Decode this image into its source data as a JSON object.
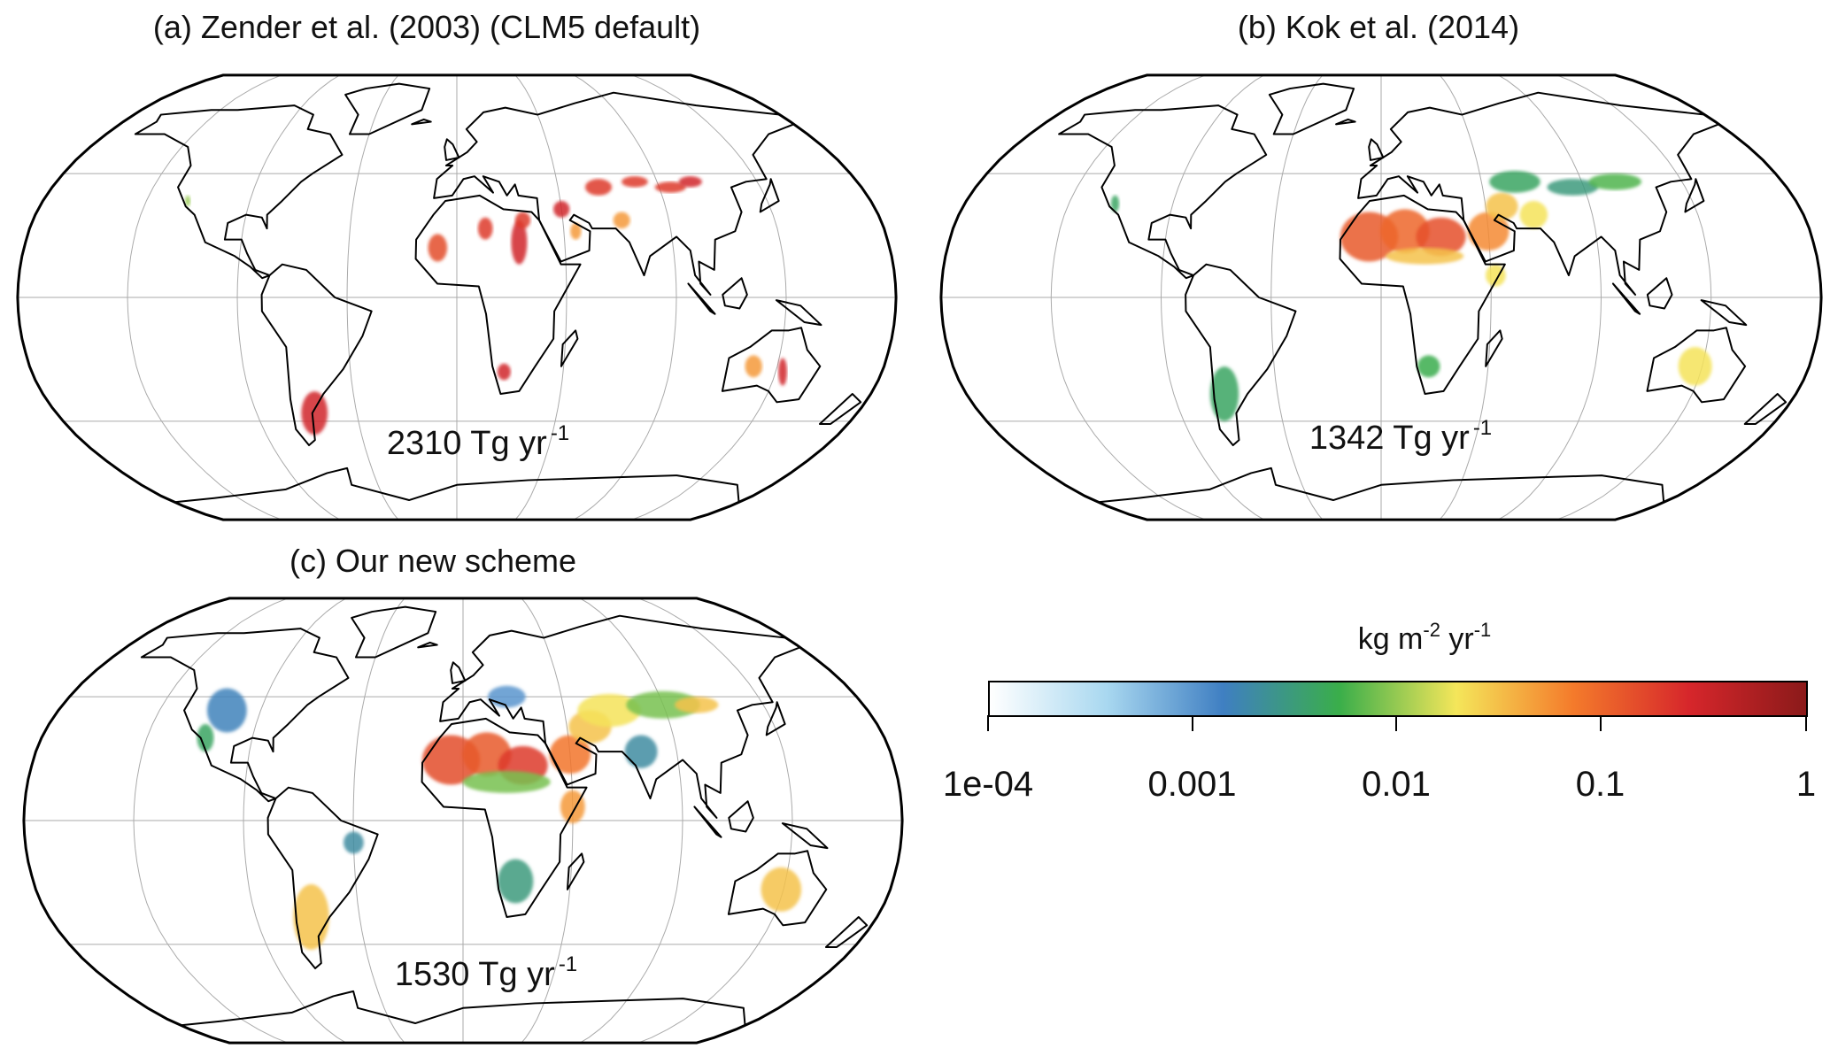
{
  "panels": [
    {
      "id": "a",
      "title": "(a) Zender et al. (2003) (CLM5 default)",
      "total": {
        "value": "2310 Tg yr",
        "exp": "-1"
      },
      "hotspots": [
        [
          -64,
          -42,
          3,
          8,
          0.3
        ],
        [
          -117,
          35,
          2,
          2,
          0.01
        ],
        [
          -8,
          18,
          4,
          5,
          0.15
        ],
        [
          12,
          25,
          3,
          4,
          0.2
        ],
        [
          26,
          20,
          3,
          8,
          0.3
        ],
        [
          28,
          28,
          3,
          3,
          0.2
        ],
        [
          45,
          32,
          3,
          3,
          0.3
        ],
        [
          50,
          24,
          2,
          3,
          0.05
        ],
        [
          63,
          40,
          5,
          3,
          0.2
        ],
        [
          80,
          42,
          5,
          2,
          0.2
        ],
        [
          95,
          40,
          6,
          2,
          0.2
        ],
        [
          105,
          42,
          4,
          2,
          0.3
        ],
        [
          70,
          28,
          3,
          3,
          0.05
        ],
        [
          20,
          -27,
          3,
          3,
          0.3
        ],
        [
          125,
          -25,
          5,
          4,
          0.05
        ],
        [
          138,
          -27,
          4,
          5,
          0.3
        ]
      ]
    },
    {
      "id": "b",
      "title": "(b) Kok et al. (2014)",
      "total": {
        "value": "1342 Tg yr",
        "exp": "-1"
      },
      "hotspots": [
        [
          -5,
          22,
          12,
          9,
          0.12
        ],
        [
          10,
          24,
          10,
          8,
          0.1
        ],
        [
          25,
          22,
          10,
          7,
          0.14
        ],
        [
          18,
          15,
          16,
          3,
          0.03
        ],
        [
          45,
          24,
          8,
          7,
          0.06
        ],
        [
          52,
          33,
          6,
          5,
          0.03
        ],
        [
          65,
          30,
          5,
          5,
          0.02
        ],
        [
          60,
          42,
          10,
          4,
          0.004
        ],
        [
          85,
          40,
          10,
          3,
          0.003
        ],
        [
          105,
          42,
          10,
          3,
          0.006
        ],
        [
          47,
          8,
          4,
          4,
          0.02
        ],
        [
          20,
          -25,
          5,
          4,
          0.005
        ],
        [
          -68,
          -35,
          3,
          10,
          0.004
        ],
        [
          -115,
          34,
          3,
          3,
          0.004
        ],
        [
          132,
          -25,
          10,
          7,
          0.02
        ]
      ]
    },
    {
      "id": "c",
      "title": "(c) Our new scheme",
      "total": {
        "value": "1530 Tg yr",
        "exp": "-1"
      },
      "hotspots": [
        [
          -105,
          40,
          12,
          8,
          0.0015
        ],
        [
          -110,
          30,
          5,
          5,
          0.004
        ],
        [
          -5,
          22,
          12,
          9,
          0.15
        ],
        [
          10,
          24,
          10,
          8,
          0.12
        ],
        [
          25,
          20,
          10,
          7,
          0.2
        ],
        [
          18,
          14,
          18,
          4,
          0.008
        ],
        [
          45,
          24,
          8,
          7,
          0.08
        ],
        [
          55,
          34,
          8,
          6,
          0.03
        ],
        [
          65,
          40,
          12,
          6,
          0.02
        ],
        [
          90,
          42,
          14,
          5,
          0.008
        ],
        [
          105,
          42,
          8,
          3,
          0.03
        ],
        [
          75,
          25,
          6,
          6,
          0.002
        ],
        [
          45,
          5,
          5,
          6,
          0.05
        ],
        [
          22,
          -22,
          8,
          8,
          0.003
        ],
        [
          -66,
          -35,
          4,
          12,
          0.03
        ],
        [
          -45,
          -8,
          4,
          4,
          0.002
        ],
        [
          134,
          -25,
          12,
          8,
          0.03
        ],
        [
          20,
          45,
          8,
          4,
          0.001
        ]
      ]
    }
  ],
  "colorbar": {
    "unit": "kg m",
    "unit_exp": "-2",
    "unit2": "yr",
    "unit2_exp": "-1",
    "ticks": [
      "1e-04",
      "0.001",
      "0.01",
      "0.1",
      "1"
    ],
    "tick_values": [
      0.0001,
      0.001,
      0.01,
      0.1,
      1
    ],
    "colors": [
      "#ffffff",
      "#a9d8f0",
      "#3f7fc2",
      "#3aae4a",
      "#f4e65a",
      "#f47b2b",
      "#d6262b",
      "#8b1a1a"
    ]
  }
}
